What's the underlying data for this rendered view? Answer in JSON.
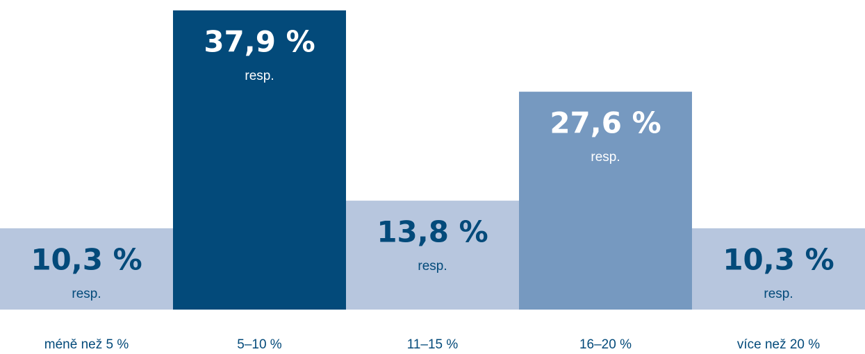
{
  "chart_data": {
    "type": "bar",
    "categories": [
      "méně než 5 %",
      "5–10 %",
      "11–15 %",
      "16–20 %",
      "více než 20 %"
    ],
    "values": [
      10.3,
      37.9,
      13.8,
      27.6,
      10.3
    ],
    "value_labels": [
      "10,3 %",
      "37,9 %",
      "13,8 %",
      "27,6 %",
      "10,3 %"
    ],
    "unit_label": "resp.",
    "colors": [
      "#b7c6de",
      "#034a7a",
      "#b7c6de",
      "#7699c0",
      "#b7c6de"
    ],
    "text_colors": [
      "#034a7a",
      "#ffffff",
      "#034a7a",
      "#ffffff",
      "#034a7a"
    ],
    "category_color": "#034a7a"
  }
}
